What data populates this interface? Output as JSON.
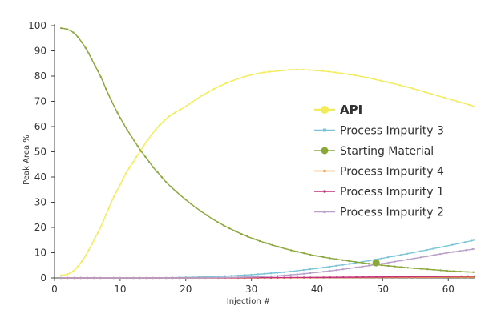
{
  "chart_data": {
    "type": "line",
    "title": "",
    "xlabel": "Injection #",
    "ylabel": "Peak Area %",
    "xlim": [
      0,
      64
    ],
    "ylim": [
      0,
      100
    ],
    "xticks": [
      0,
      10,
      20,
      30,
      40,
      50,
      60
    ],
    "yticks": [
      0,
      10,
      20,
      30,
      40,
      50,
      60,
      70,
      80,
      90,
      100
    ],
    "grid": false,
    "legend_position": "right",
    "series": [
      {
        "name": "API",
        "color": "#f2ec5a",
        "marker": "circle",
        "bold": true,
        "points": [
          [
            1,
            1
          ],
          [
            2,
            1.5
          ],
          [
            3,
            3
          ],
          [
            4,
            6
          ],
          [
            5,
            10
          ],
          [
            6,
            15
          ],
          [
            7,
            20
          ],
          [
            8,
            26
          ],
          [
            9,
            32
          ],
          [
            10,
            37
          ],
          [
            11,
            42
          ],
          [
            12,
            46
          ],
          [
            13,
            50
          ],
          [
            14,
            54
          ],
          [
            15,
            57.5
          ],
          [
            16,
            60.5
          ],
          [
            17,
            63
          ],
          [
            18,
            65
          ],
          [
            20,
            68
          ],
          [
            22,
            71.5
          ],
          [
            24,
            74.5
          ],
          [
            26,
            77
          ],
          [
            28,
            79
          ],
          [
            30,
            80.5
          ],
          [
            32,
            81.5
          ],
          [
            34,
            82
          ],
          [
            36,
            82.5
          ],
          [
            38,
            82.5
          ],
          [
            40,
            82.2
          ],
          [
            42,
            81.7
          ],
          [
            44,
            81
          ],
          [
            46,
            80.2
          ],
          [
            48,
            79.2
          ],
          [
            50,
            78
          ],
          [
            52,
            76.8
          ],
          [
            54,
            75.5
          ],
          [
            56,
            74
          ],
          [
            58,
            72.5
          ],
          [
            60,
            71
          ],
          [
            62,
            69.5
          ],
          [
            64,
            68
          ]
        ]
      },
      {
        "name": "Process Impurity 3",
        "color": "#7cc5d8",
        "marker": "square",
        "bold": false,
        "points": [
          [
            1,
            0
          ],
          [
            10,
            0
          ],
          [
            15,
            0
          ],
          [
            20,
            0.2
          ],
          [
            25,
            0.6
          ],
          [
            30,
            1.3
          ],
          [
            35,
            2.3
          ],
          [
            40,
            3.8
          ],
          [
            45,
            5.6
          ],
          [
            50,
            7.8
          ],
          [
            55,
            10.2
          ],
          [
            60,
            12.8
          ],
          [
            64,
            15
          ]
        ]
      },
      {
        "name": "Starting Material",
        "color": "#8aa83a",
        "marker": "circle",
        "bold": false,
        "points": [
          [
            1,
            99
          ],
          [
            2,
            98.5
          ],
          [
            3,
            97
          ],
          [
            4,
            94
          ],
          [
            5,
            90
          ],
          [
            6,
            85
          ],
          [
            7,
            80
          ],
          [
            8,
            74
          ],
          [
            9,
            68.5
          ],
          [
            10,
            63.5
          ],
          [
            11,
            59
          ],
          [
            12,
            55
          ],
          [
            13,
            51
          ],
          [
            14,
            47.5
          ],
          [
            15,
            44
          ],
          [
            16,
            41
          ],
          [
            17,
            38
          ],
          [
            18,
            35.5
          ],
          [
            20,
            31
          ],
          [
            22,
            27
          ],
          [
            24,
            23.5
          ],
          [
            26,
            20.5
          ],
          [
            28,
            18
          ],
          [
            30,
            15.8
          ],
          [
            32,
            14
          ],
          [
            34,
            12.4
          ],
          [
            36,
            11
          ],
          [
            38,
            9.8
          ],
          [
            40,
            8.7
          ],
          [
            42,
            7.8
          ],
          [
            44,
            7
          ],
          [
            46,
            6.3
          ],
          [
            48,
            5.6
          ],
          [
            50,
            5
          ],
          [
            52,
            4.5
          ],
          [
            54,
            4
          ],
          [
            56,
            3.6
          ],
          [
            58,
            3.2
          ],
          [
            60,
            2.8
          ],
          [
            62,
            2.5
          ],
          [
            64,
            2.3
          ]
        ]
      },
      {
        "name": "Process Impurity 4",
        "color": "#f0a04b",
        "marker": "circle",
        "bold": false,
        "points": [
          [
            1,
            0
          ],
          [
            20,
            0
          ],
          [
            30,
            0
          ],
          [
            40,
            0.1
          ],
          [
            50,
            0.2
          ],
          [
            60,
            0.3
          ],
          [
            64,
            0.3
          ]
        ]
      },
      {
        "name": "Process Impurity 1",
        "color": "#c2327a",
        "marker": "circle",
        "bold": false,
        "points": [
          [
            1,
            0
          ],
          [
            20,
            0
          ],
          [
            30,
            0.1
          ],
          [
            40,
            0.2
          ],
          [
            50,
            0.4
          ],
          [
            60,
            0.6
          ],
          [
            64,
            0.7
          ]
        ]
      },
      {
        "name": "Process Impurity 2",
        "color": "#b8a0c8",
        "marker": "circle",
        "bold": false,
        "points": [
          [
            1,
            0
          ],
          [
            20,
            0
          ],
          [
            30,
            0.4
          ],
          [
            35,
            1
          ],
          [
            40,
            2.2
          ],
          [
            45,
            3.8
          ],
          [
            50,
            5.7
          ],
          [
            55,
            7.8
          ],
          [
            60,
            10
          ],
          [
            64,
            11.5
          ]
        ]
      }
    ],
    "highlight_marker": {
      "series": "Starting Material",
      "x": 49,
      "y": 6
    }
  }
}
